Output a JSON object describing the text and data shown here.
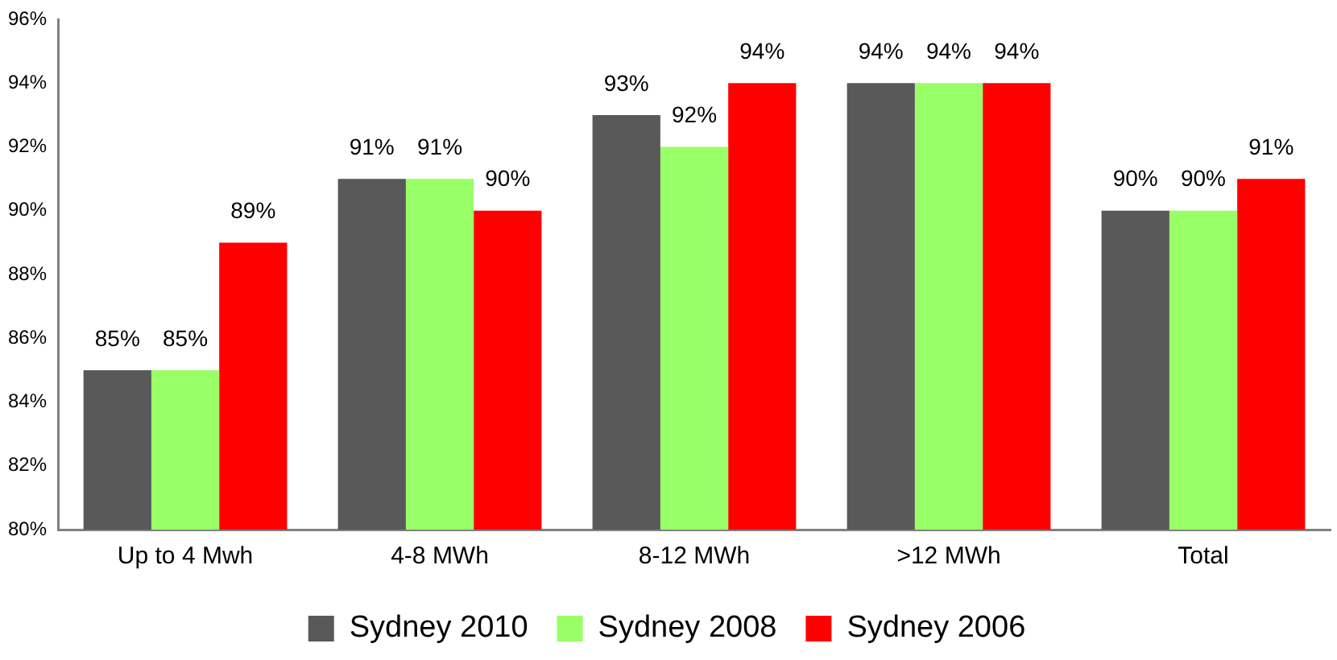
{
  "chart_data": {
    "type": "bar",
    "categories": [
      "Up to 4 Mwh",
      "4-8 MWh",
      "8-12 MWh",
      ">12 MWh",
      "Total"
    ],
    "series": [
      {
        "name": "Sydney 2010",
        "color": "#595959",
        "values": [
          85,
          91,
          93,
          94,
          90
        ],
        "value_labels": [
          "85%",
          "91%",
          "93%",
          "94%",
          "90%"
        ]
      },
      {
        "name": "Sydney 2008",
        "color": "#99ff66",
        "values": [
          85,
          91,
          92,
          94,
          90
        ],
        "value_labels": [
          "85%",
          "91%",
          "92%",
          "94%",
          "90%"
        ]
      },
      {
        "name": "Sydney 2006",
        "color": "#ff0000",
        "values": [
          89,
          90,
          94,
          94,
          91
        ],
        "value_labels": [
          "89%",
          "90%",
          "94%",
          "94%",
          "91%"
        ]
      }
    ],
    "ylim": [
      80,
      96
    ],
    "yticks": [
      {
        "value": 80,
        "label": "80%"
      },
      {
        "value": 82,
        "label": "82%"
      },
      {
        "value": 84,
        "label": "84%"
      },
      {
        "value": 86,
        "label": "86%"
      },
      {
        "value": 88,
        "label": "88%"
      },
      {
        "value": 90,
        "label": "90%"
      },
      {
        "value": 92,
        "label": "92%"
      },
      {
        "value": 94,
        "label": "94%"
      },
      {
        "value": 96,
        "label": "96%"
      }
    ],
    "grid": false,
    "legend": "bottom"
  }
}
